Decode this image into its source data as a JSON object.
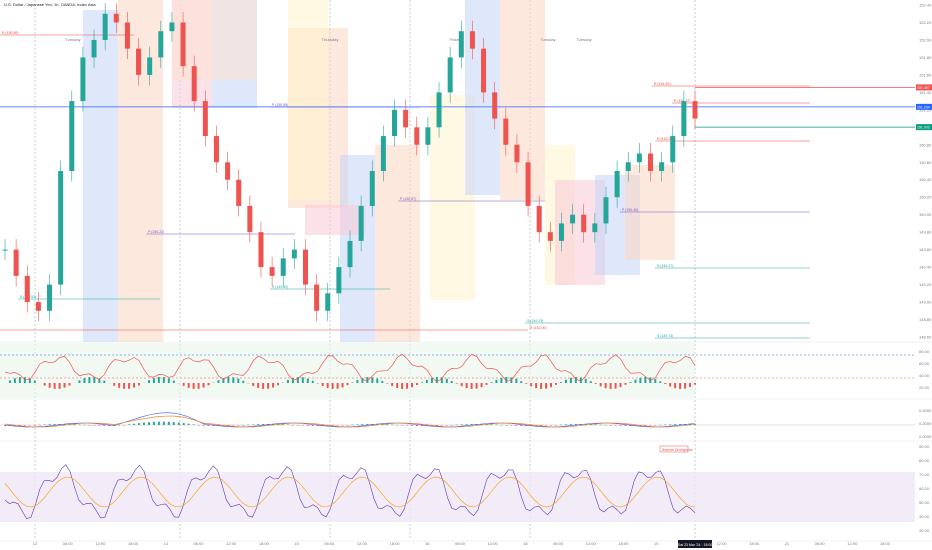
{
  "header": {
    "symbol": "U.S. Dollar / Japanese Yen, 1h, OANDA, Index Asia"
  },
  "price_axis": {
    "ticks": [
      "152.40",
      "152.20",
      "152.00",
      "151.80",
      "151.60",
      "151.40",
      "151.20",
      "151.00",
      "150.80",
      "150.60",
      "150.40",
      "150.20",
      "150.00",
      "149.80",
      "149.60",
      "149.40",
      "149.20",
      "149.00",
      "148.80",
      "148.60"
    ],
    "last_price": "151.234",
    "red_tag": "151.457",
    "green_tag": "151.002"
  },
  "time_axis": {
    "ticks": [
      "12",
      "06:00",
      "12:00",
      "18:00",
      "14",
      "06:00",
      "12:00",
      "18:00",
      "15",
      "06:00",
      "12:00",
      "18:00",
      "16",
      "06:00",
      "12:00",
      "18",
      "06:00",
      "12:00",
      "18:00",
      "19",
      "06:00",
      "12:00",
      "18:00",
      "21",
      "06:00",
      "12:00",
      "18:00"
    ],
    "cursor_label": "Sat 23 Mar '24 · 15:00"
  },
  "session_labels": [
    "Tuesday",
    "Thursday",
    "Friday",
    "Tuesday",
    "Tuesday"
  ],
  "levels": [
    {
      "label": "R (150.59)",
      "color": "#e74c3c"
    },
    {
      "label": "R (152.00)",
      "color": "#e74c3c"
    },
    {
      "label": "R (151.40)",
      "color": "#e74c3c"
    },
    {
      "label": "R (151.22)",
      "color": "#e74c3c"
    },
    {
      "label": "R (151.09)",
      "color": "#e74c3c"
    },
    {
      "label": "P (150.95)",
      "color": "#7e57c2"
    },
    {
      "label": "P (150.87)",
      "color": "#7e57c2"
    },
    {
      "label": "P (150.40)",
      "color": "#7e57c2"
    },
    {
      "label": "P (150.22)",
      "color": "#7e57c2"
    },
    {
      "label": "S (149.82)",
      "color": "#26a69a"
    },
    {
      "label": "S (149.52)",
      "color": "#26a69a"
    },
    {
      "label": "S (149.23)",
      "color": "#26a69a"
    },
    {
      "label": "S (149.37)",
      "color": "#26a69a"
    },
    {
      "label": "S (149.73)",
      "color": "#26a69a"
    }
  ],
  "osc1_axis": [
    "80.00",
    "60.00",
    "40.00",
    "20.00"
  ],
  "macd_axis": [
    "0.4000",
    "0.2000",
    "0.0000"
  ],
  "rsi_axis": [
    "90.00",
    "80.00",
    "70.00",
    "60.00",
    "50.00",
    "40.00",
    "30.00"
  ],
  "divergence_label": "Bearish Divergence",
  "chart_data": {
    "type": "candlestick",
    "title": "U.S. Dollar / Japanese Yen, 1h, OANDA, Index Asia",
    "ylim": [
      148.6,
      152.4
    ],
    "close_approx": [
      149.6,
      149.3,
      149.0,
      148.9,
      149.2,
      150.5,
      151.3,
      151.8,
      152.0,
      152.3,
      152.2,
      151.9,
      151.6,
      151.8,
      152.1,
      152.2,
      151.7,
      151.3,
      150.9,
      150.6,
      150.4,
      150.1,
      149.8,
      149.4,
      149.3,
      149.5,
      149.6,
      149.2,
      148.9,
      149.1,
      149.4,
      149.7,
      150.1,
      150.5,
      150.9,
      151.2,
      151.0,
      150.8,
      151.0,
      151.4,
      151.8,
      152.1,
      151.9,
      151.4,
      151.1,
      150.8,
      150.6,
      150.1,
      149.8,
      149.7,
      149.9,
      150.0,
      149.8,
      149.9,
      150.2,
      150.5,
      150.6,
      150.7,
      150.5,
      150.6,
      150.9,
      151.3,
      151.1
    ],
    "osc_ylim": [
      0,
      100
    ],
    "rsi_ylim": [
      20,
      90
    ],
    "macd_ylim": [
      -0.3,
      0.5
    ]
  }
}
